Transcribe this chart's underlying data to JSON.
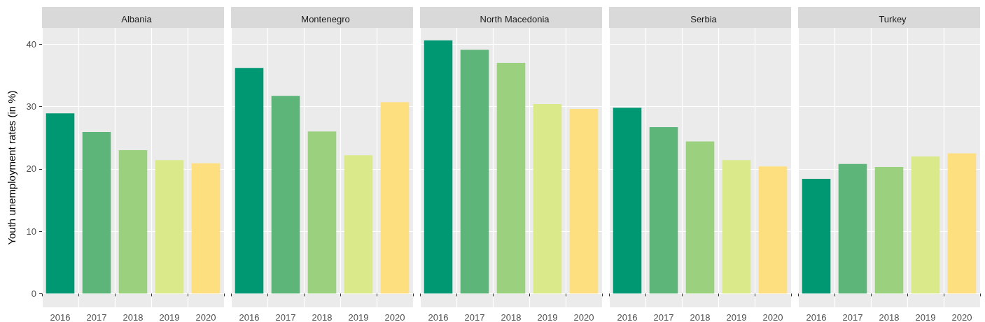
{
  "chart_data": [
    {
      "type": "bar",
      "title": "Albania",
      "ylabel": "Youth unemployment rates (in %)",
      "categories": [
        "2016",
        "2017",
        "2018",
        "2019",
        "2020"
      ],
      "values": [
        28.9,
        25.9,
        23.0,
        21.4,
        20.9
      ],
      "colors": [
        "#009873",
        "#5db579",
        "#9bd17e",
        "#dae98a",
        "#fedf80"
      ],
      "ylim": [
        -2.2,
        42.6
      ],
      "yticks": [
        0,
        10,
        20,
        30,
        40
      ],
      "grid": true
    },
    {
      "type": "bar",
      "title": "Montenegro",
      "categories": [
        "2016",
        "2017",
        "2018",
        "2019",
        "2020"
      ],
      "values": [
        36.2,
        31.7,
        26.0,
        22.2,
        30.7
      ],
      "colors": [
        "#009873",
        "#5db579",
        "#9bd17e",
        "#dae98a",
        "#fedf80"
      ],
      "ylim": [
        -2.2,
        42.6
      ],
      "yticks": [
        0,
        10,
        20,
        30,
        40
      ],
      "grid": true,
      "tick_labels": "x"
    },
    {
      "type": "bar",
      "title": "North Macedonia",
      "categories": [
        "2016",
        "2017",
        "2018",
        "2019",
        "2020"
      ],
      "values": [
        40.6,
        39.1,
        37.0,
        30.4,
        29.6
      ],
      "colors": [
        "#009873",
        "#5db579",
        "#9bd17e",
        "#dae98a",
        "#fedf80"
      ],
      "ylim": [
        -2.2,
        42.6
      ],
      "yticks": [
        0,
        10,
        20,
        30,
        40
      ],
      "grid": true,
      "tick_labels": "x"
    },
    {
      "type": "bar",
      "title": "Serbia",
      "categories": [
        "2016",
        "2017",
        "2018",
        "2019",
        "2020"
      ],
      "values": [
        29.8,
        26.7,
        24.4,
        21.4,
        20.4
      ],
      "colors": [
        "#009873",
        "#5db579",
        "#9bd17e",
        "#dae98a",
        "#fedf80"
      ],
      "ylim": [
        -2.2,
        42.6
      ],
      "yticks": [
        0,
        10,
        20,
        30,
        40
      ],
      "grid": true,
      "tick_labels": "x"
    },
    {
      "type": "bar",
      "title": "Turkey",
      "categories": [
        "2016",
        "2017",
        "2018",
        "2019",
        "2020"
      ],
      "values": [
        18.4,
        20.8,
        20.3,
        22.0,
        22.5
      ],
      "colors": [
        "#009873",
        "#5db579",
        "#9bd17e",
        "#dae98a",
        "#fedf80"
      ],
      "ylim": [
        -2.2,
        42.6
      ],
      "yticks": [
        0,
        10,
        20,
        30,
        40
      ],
      "grid": true,
      "tick_labels": "x"
    }
  ]
}
